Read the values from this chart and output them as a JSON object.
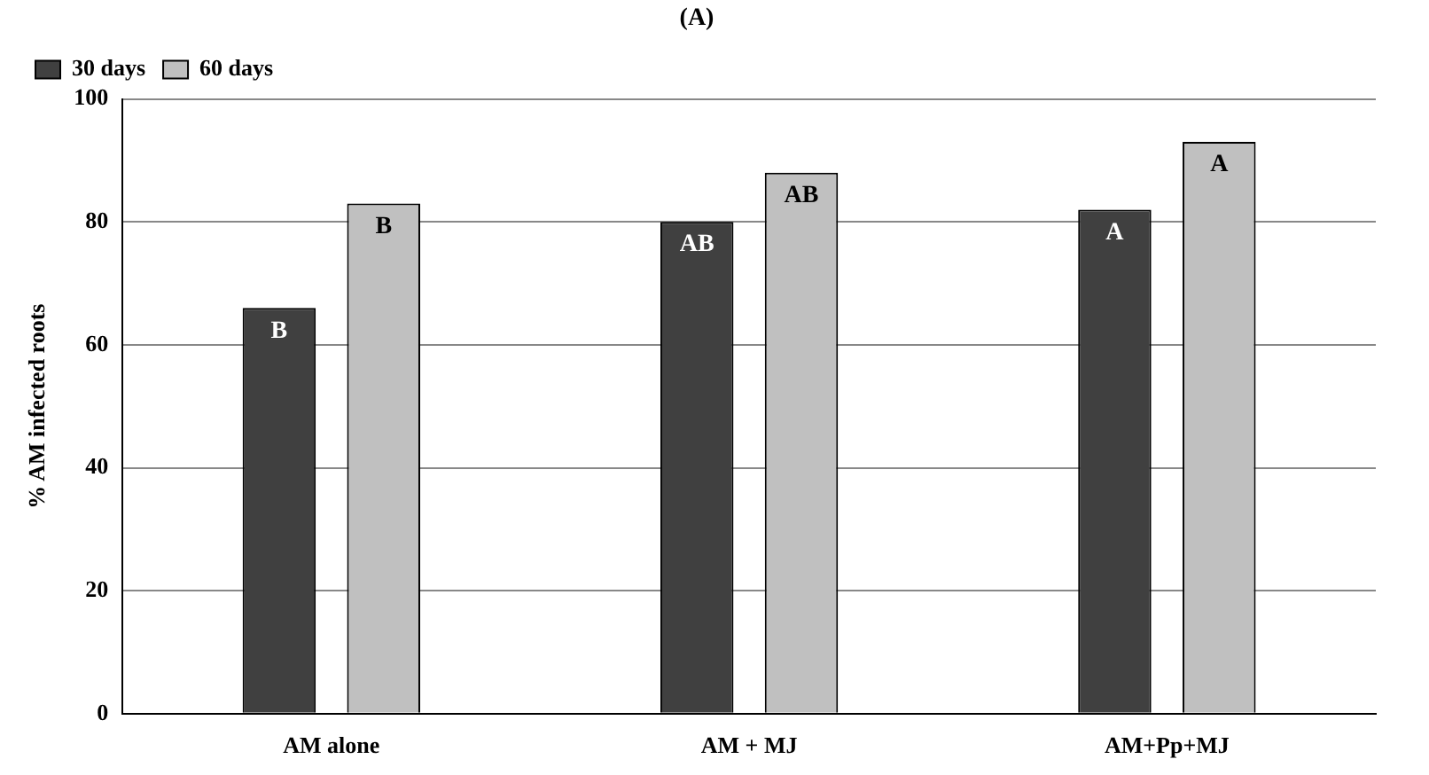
{
  "chart_data": {
    "type": "bar",
    "title": "(A)",
    "ylabel": "% AM infected roots",
    "categories": [
      "AM alone",
      "AM + MJ",
      "AM+Pp+MJ"
    ],
    "series": [
      {
        "name": "30 days",
        "color": "#404040",
        "values": [
          66,
          80,
          82
        ],
        "value_labels": [
          "B",
          "AB",
          "A"
        ]
      },
      {
        "name": "60 days",
        "color": "#c0c0c0",
        "values": [
          83,
          88,
          93
        ],
        "value_labels": [
          "B",
          "AB",
          "A"
        ]
      }
    ],
    "ylim": [
      0,
      100
    ],
    "yticks": [
      0,
      20,
      40,
      60,
      80,
      100
    ],
    "grid": "y",
    "legend": "top left"
  }
}
